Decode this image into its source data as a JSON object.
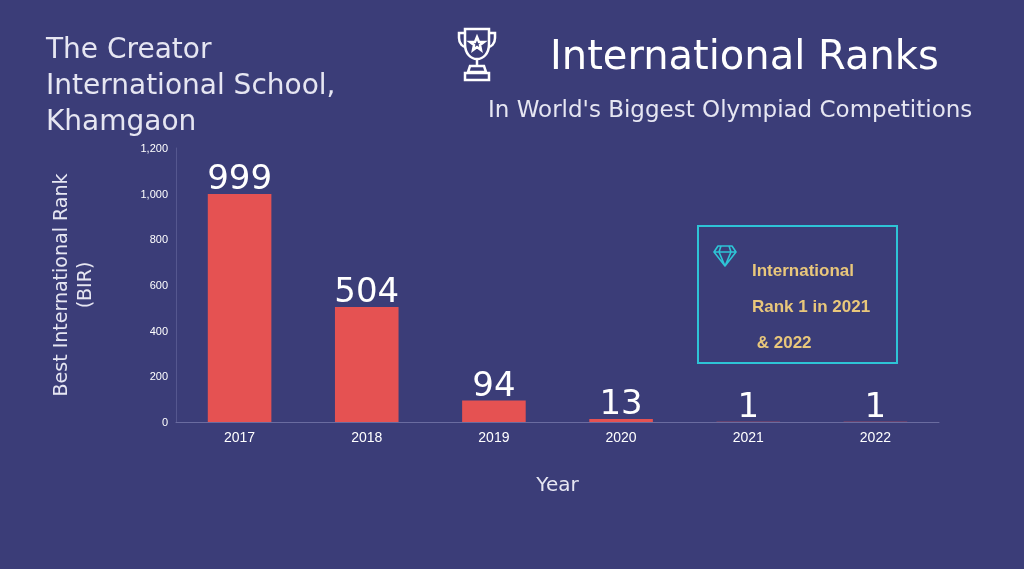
{
  "chart_data": {
    "type": "bar",
    "title": "International Ranks",
    "subtitle": "In World's Biggest Olympiad Competitions",
    "xlabel": "Year",
    "ylabel": "Best International Rank\n(BIR)",
    "annotations": [
      "The Creator International School, Khamgaon",
      "International Rank 1 in 2021 & 2022"
    ],
    "categories": [
      "2017",
      "2018",
      "2019",
      "2020",
      "2021",
      "2022"
    ],
    "values": [
      999,
      504,
      94,
      13,
      1,
      1
    ],
    "color": "#e55252",
    "data_labels": true,
    "ylim": [
      0,
      1200
    ],
    "yticks": [
      {
        "value": 0,
        "label": "0"
      },
      {
        "value": 200,
        "label": "200"
      },
      {
        "value": 400,
        "label": "400"
      },
      {
        "value": 600,
        "label": "600"
      },
      {
        "value": 800,
        "label": "800"
      },
      {
        "value": 1000,
        "label": "1,000"
      },
      {
        "value": 1200,
        "label": "1,200"
      }
    ]
  }
}
